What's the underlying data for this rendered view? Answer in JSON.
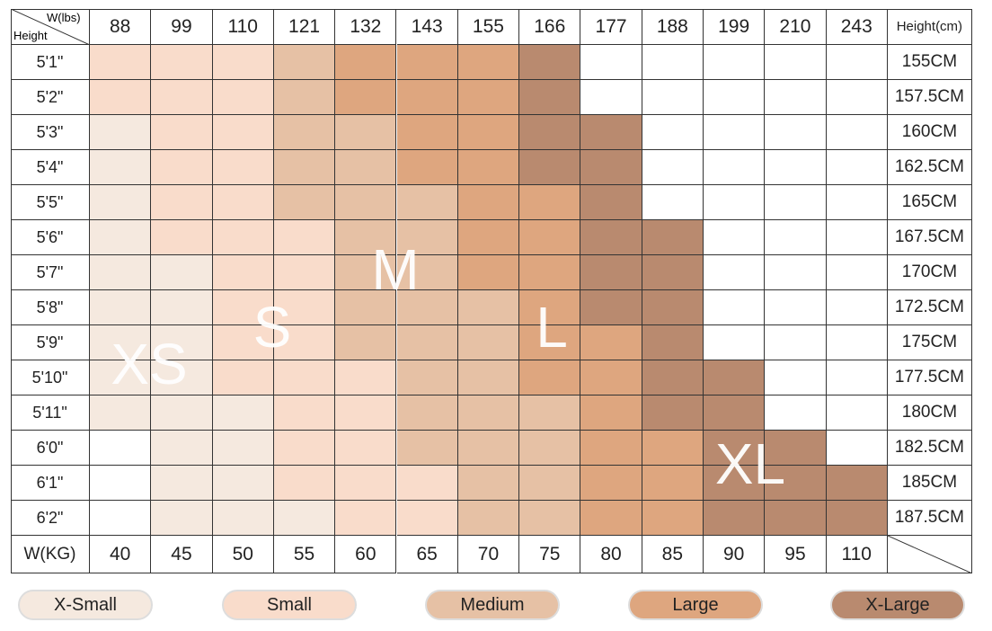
{
  "header": {
    "weight_label": "W(lbs)",
    "height_label": "Height",
    "cm_label": "Height(cm)",
    "weights_lbs": [
      88,
      99,
      110,
      121,
      132,
      143,
      155,
      166,
      177,
      188,
      199,
      210,
      243
    ]
  },
  "rows": [
    {
      "height": "5'1\"",
      "cm": "155CM",
      "fill": [
        1,
        1,
        1,
        2,
        3,
        3,
        3,
        4,
        null,
        null,
        null,
        null,
        null
      ]
    },
    {
      "height": "5'2\"",
      "cm": "157.5CM",
      "fill": [
        1,
        1,
        1,
        2,
        3,
        3,
        3,
        4,
        null,
        null,
        null,
        null,
        null
      ]
    },
    {
      "height": "5'3\"",
      "cm": "160CM",
      "fill": [
        0,
        1,
        1,
        2,
        2,
        3,
        3,
        4,
        4,
        null,
        null,
        null,
        null
      ]
    },
    {
      "height": "5'4\"",
      "cm": "162.5CM",
      "fill": [
        0,
        1,
        1,
        2,
        2,
        3,
        3,
        4,
        4,
        null,
        null,
        null,
        null
      ]
    },
    {
      "height": "5'5\"",
      "cm": "165CM",
      "fill": [
        0,
        1,
        1,
        2,
        2,
        2,
        3,
        3,
        4,
        null,
        null,
        null,
        null
      ]
    },
    {
      "height": "5'6\"",
      "cm": "167.5CM",
      "fill": [
        0,
        1,
        1,
        1,
        2,
        2,
        3,
        3,
        4,
        4,
        null,
        null,
        null
      ]
    },
    {
      "height": "5'7\"",
      "cm": "170CM",
      "fill": [
        0,
        0,
        1,
        1,
        2,
        2,
        3,
        3,
        4,
        4,
        null,
        null,
        null
      ]
    },
    {
      "height": "5'8\"",
      "cm": "172.5CM",
      "fill": [
        0,
        0,
        1,
        1,
        2,
        2,
        2,
        3,
        4,
        4,
        null,
        null,
        null
      ]
    },
    {
      "height": "5'9\"",
      "cm": "175CM",
      "fill": [
        0,
        0,
        1,
        1,
        2,
        2,
        2,
        3,
        3,
        4,
        null,
        null,
        null
      ]
    },
    {
      "height": "5'10\"",
      "cm": "177.5CM",
      "fill": [
        0,
        0,
        1,
        1,
        1,
        2,
        2,
        3,
        3,
        4,
        4,
        null,
        null
      ]
    },
    {
      "height": "5'11\"",
      "cm": "180CM",
      "fill": [
        0,
        0,
        0,
        1,
        1,
        2,
        2,
        2,
        3,
        4,
        4,
        null,
        null
      ]
    },
    {
      "height": "6'0\"",
      "cm": "182.5CM",
      "fill": [
        null,
        0,
        0,
        1,
        1,
        2,
        2,
        2,
        3,
        3,
        4,
        4,
        null
      ]
    },
    {
      "height": "6'1\"",
      "cm": "185CM",
      "fill": [
        null,
        0,
        0,
        1,
        1,
        1,
        2,
        2,
        3,
        3,
        4,
        4,
        4
      ]
    },
    {
      "height": "6'2\"",
      "cm": "187.5CM",
      "fill": [
        null,
        0,
        0,
        0,
        1,
        1,
        2,
        2,
        3,
        3,
        4,
        4,
        4
      ]
    }
  ],
  "footer": {
    "label": "W(KG)",
    "weights_kg": [
      40,
      45,
      50,
      55,
      60,
      65,
      70,
      75,
      80,
      85,
      90,
      95,
      110
    ]
  },
  "zones": [
    "XS",
    "S",
    "M",
    "L",
    "XL"
  ],
  "legend": [
    {
      "label": "X-Small",
      "color": "#f5e9df"
    },
    {
      "label": "Small",
      "color": "#f9dccb"
    },
    {
      "label": "Medium",
      "color": "#e6c1a5"
    },
    {
      "label": "Large",
      "color": "#dea67f"
    },
    {
      "label": "X-Large",
      "color": "#b98a6f"
    }
  ]
}
